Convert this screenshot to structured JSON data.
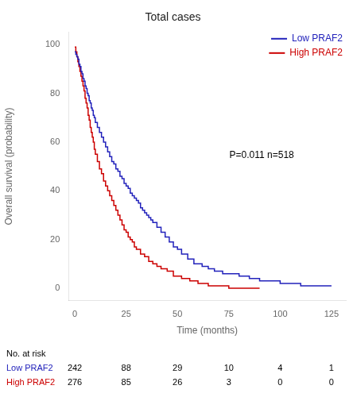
{
  "chart_data": {
    "type": "step",
    "title": "Total cases",
    "xlabel": "Time (months)",
    "ylabel": "Overall survival (probability)",
    "xlim": [
      -3,
      132
    ],
    "ylim": [
      -5,
      105
    ],
    "xticks": [
      0,
      25,
      50,
      75,
      100,
      125
    ],
    "yticks": [
      0,
      20,
      40,
      60,
      80,
      100
    ],
    "grid": false,
    "legend": "upper right",
    "annotations": [
      "P=0.011 n=518"
    ],
    "series": [
      {
        "name": "Low PRAF2",
        "color": "#2222bb",
        "x": [
          0,
          0.5,
          1,
          1.5,
          2,
          2.5,
          3,
          3.5,
          4,
          4.5,
          5,
          5.5,
          6,
          6.5,
          7,
          7.5,
          8,
          8.5,
          9,
          9.5,
          10,
          11,
          12,
          13,
          14,
          15,
          16,
          17,
          18,
          19,
          20,
          21,
          22,
          23,
          24,
          25,
          26,
          27,
          28,
          29,
          30,
          31,
          32,
          33,
          34,
          35,
          36,
          37,
          38,
          40,
          42,
          44,
          46,
          48,
          50,
          52,
          55,
          58,
          62,
          65,
          68,
          72,
          75,
          80,
          85,
          90,
          100,
          110,
          125
        ],
        "values": [
          97,
          96,
          95,
          94,
          92,
          91,
          89,
          88,
          86,
          85,
          83,
          82,
          80,
          79,
          77,
          76,
          74,
          73,
          71,
          70,
          68,
          66,
          64,
          62,
          60,
          58,
          56,
          54,
          52,
          51,
          49,
          48,
          46,
          45,
          43,
          42,
          41,
          39,
          38,
          37,
          36,
          35,
          33,
          32,
          31,
          30,
          29,
          28,
          27,
          25,
          23,
          21,
          19,
          17,
          16,
          14,
          12,
          10,
          9,
          8,
          7,
          6,
          6,
          5,
          4,
          3,
          2,
          1,
          1
        ]
      },
      {
        "name": "High PRAF2",
        "color": "#cc0000",
        "x": [
          0,
          0.5,
          1,
          1.5,
          2,
          2.5,
          3,
          3.5,
          4,
          4.5,
          5,
          5.5,
          6,
          6.5,
          7,
          7.5,
          8,
          8.5,
          9,
          9.5,
          10,
          11,
          12,
          13,
          14,
          15,
          16,
          17,
          18,
          19,
          20,
          21,
          22,
          23,
          24,
          25,
          26,
          27,
          28,
          29,
          30,
          32,
          34,
          36,
          38,
          40,
          42,
          45,
          48,
          52,
          56,
          60,
          65,
          70,
          75,
          80,
          90
        ],
        "values": [
          99,
          97,
          95,
          93,
          91,
          89,
          87,
          85,
          83,
          81,
          78,
          76,
          74,
          71,
          69,
          66,
          64,
          62,
          60,
          57,
          55,
          52,
          49,
          47,
          44,
          42,
          40,
          38,
          36,
          34,
          32,
          30,
          28,
          26,
          24,
          23,
          21,
          20,
          19,
          17,
          16,
          14,
          13,
          11,
          10,
          9,
          8,
          7,
          5,
          4,
          3,
          2,
          1,
          1,
          0,
          0,
          0
        ]
      }
    ],
    "risk_table": {
      "header": "No. at risk",
      "time_points": [
        0,
        25,
        50,
        75,
        100,
        125
      ],
      "rows": [
        {
          "name": "Low PRAF2",
          "color": "#2222bb",
          "values": [
            242,
            88,
            29,
            10,
            4,
            1
          ]
        },
        {
          "name": "High PRAF2",
          "color": "#cc0000",
          "values": [
            276,
            85,
            26,
            3,
            0,
            0
          ]
        }
      ]
    }
  }
}
